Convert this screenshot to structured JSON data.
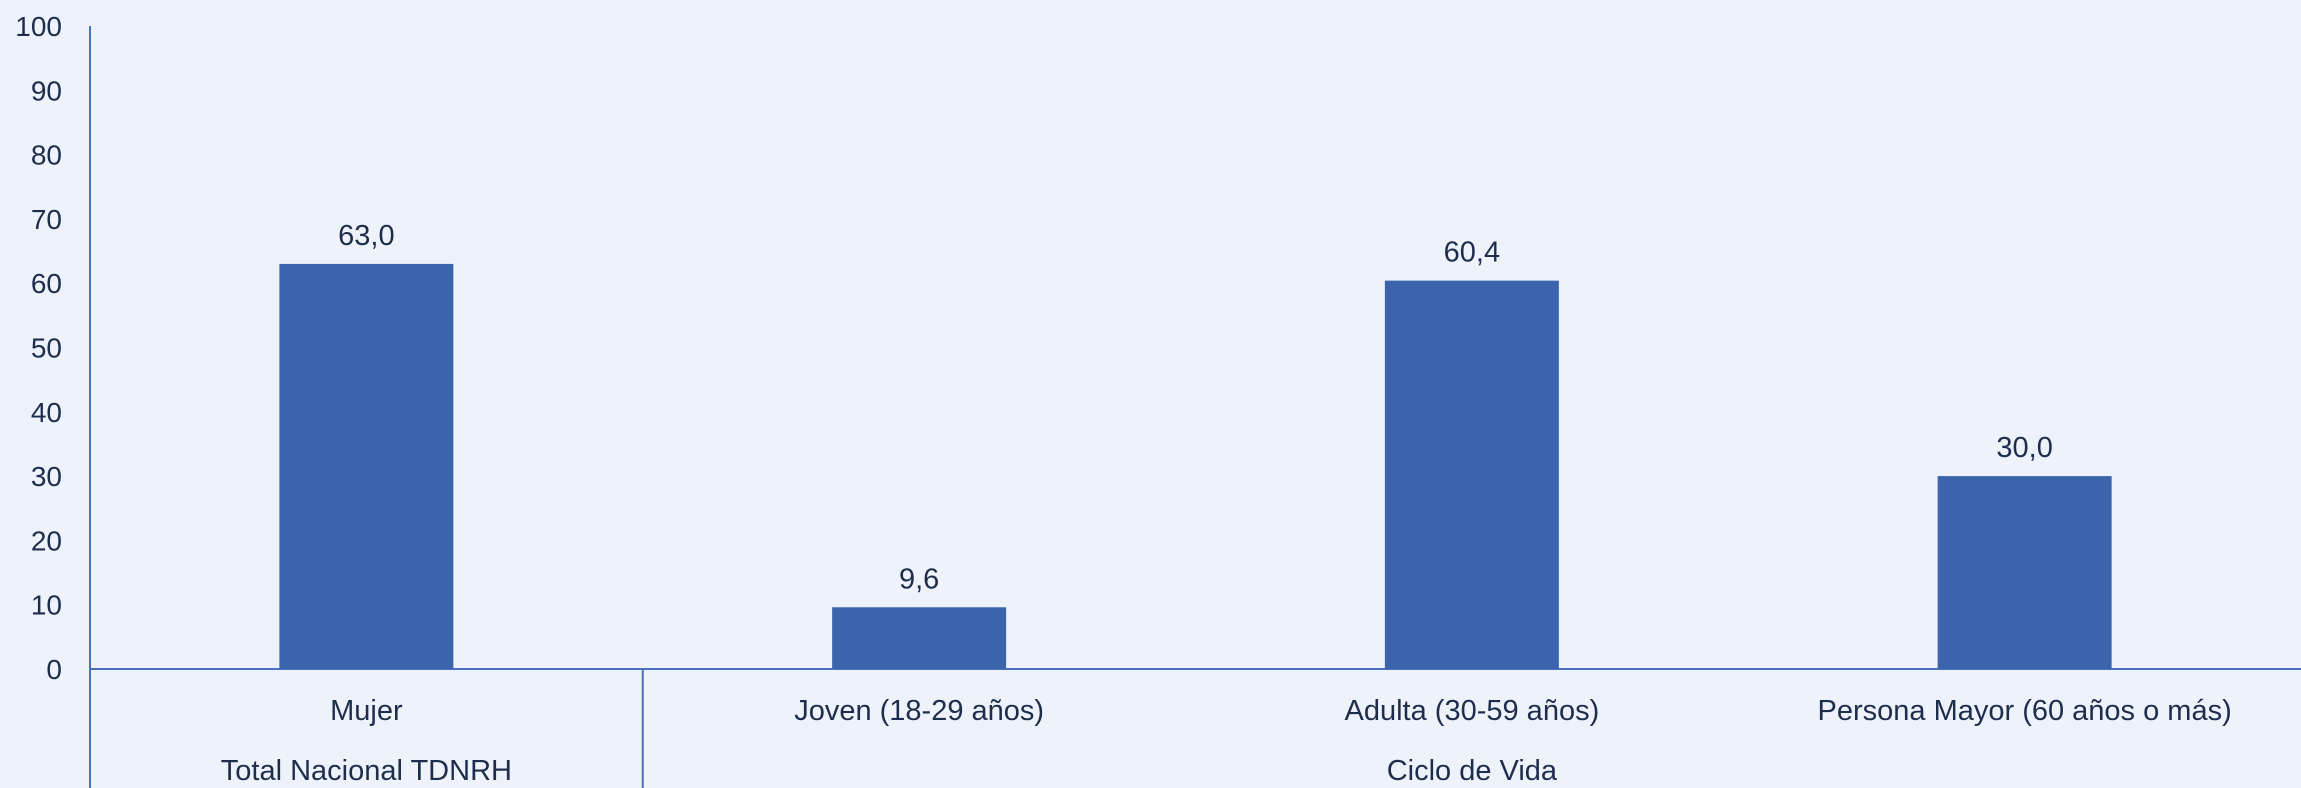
{
  "chart_data": {
    "type": "bar",
    "categories": [
      "Mujer",
      "Joven (18-29 años)",
      "Adulta (30-59 años)",
      "Persona Mayor (60 años o más)"
    ],
    "values": [
      63.0,
      9.6,
      60.4,
      30.0
    ],
    "data_labels": [
      "63,0",
      "9,6",
      "60,4",
      "30,0"
    ],
    "groups": [
      {
        "label": "Total Nacional TDNRH",
        "categories": [
          "Mujer"
        ]
      },
      {
        "label": "Ciclo de Vida",
        "categories": [
          "Joven (18-29 años)",
          "Adulta (30-59 años)",
          "Persona Mayor (60 años o más)"
        ]
      }
    ],
    "yticks": [
      "0",
      "10",
      "20",
      "30",
      "40",
      "50",
      "60",
      "70",
      "80",
      "90",
      "100"
    ],
    "ylim": [
      0,
      100
    ],
    "grid": false,
    "legend": "none",
    "colors": {
      "bar": "#3c64ad",
      "axis": "#4a72c0",
      "text": "#1f2d4d",
      "background": "#eef2fa"
    }
  }
}
